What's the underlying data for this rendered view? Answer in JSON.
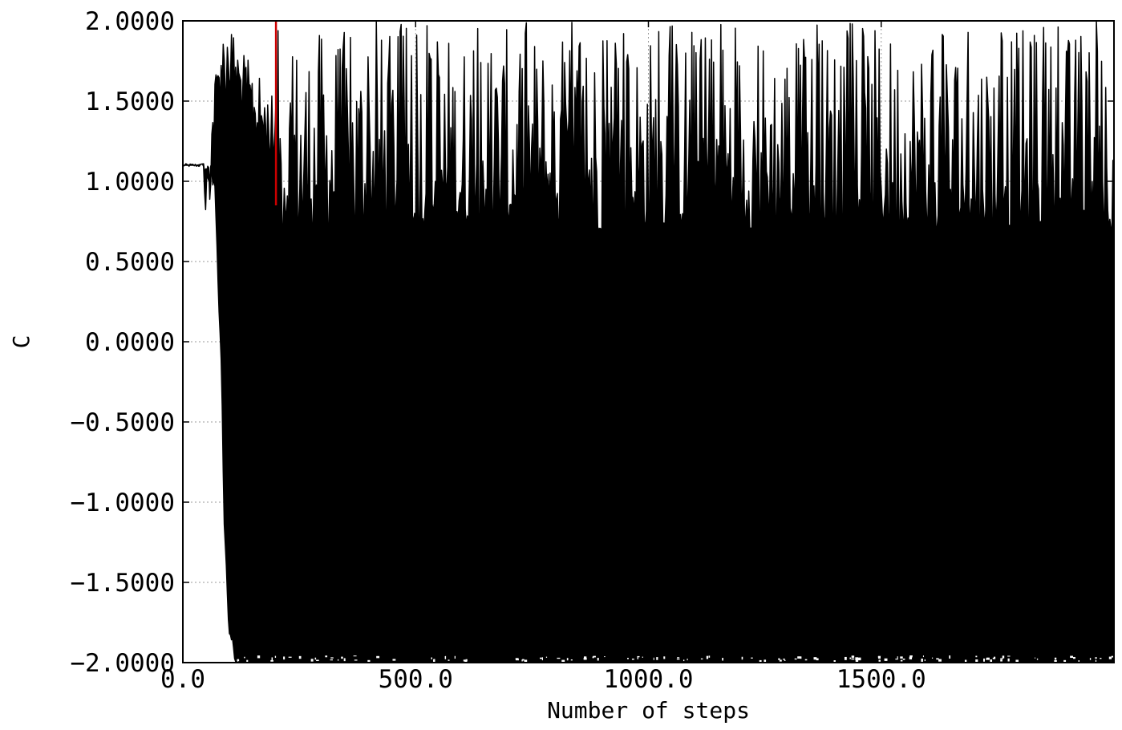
{
  "chart_data": {
    "type": "line",
    "title": "",
    "xlabel": "Number of steps",
    "ylabel": "C",
    "xlim": [
      0,
      2000
    ],
    "ylim": [
      -2.0,
      2.0
    ],
    "x_ticks": [
      0,
      500,
      1000,
      1500
    ],
    "x_tick_labels": [
      "0.0",
      "500.0",
      "1000.0",
      "1500.0"
    ],
    "y_ticks": [
      2.0,
      1.5,
      1.0,
      0.5,
      0.0,
      -0.5,
      -1.0,
      -1.5,
      -2.0
    ],
    "y_tick_labels": [
      "2.0000",
      "1.5000",
      "1.0000",
      "0.5000",
      "0.0000",
      "−0.5000",
      "−1.0000",
      "−1.5000",
      "−2.0000"
    ],
    "grid": true,
    "series": [
      {
        "color": "#000000",
        "description_points": [
          {
            "x": 0,
            "y": 1.1
          },
          {
            "x": 30,
            "y": 1.1
          },
          {
            "x": 60,
            "y": 1.12
          },
          {
            "x": 70,
            "y": 1.0
          },
          {
            "x": 75,
            "y": 0.5
          },
          {
            "x": 82,
            "y": 0.0
          },
          {
            "x": 90,
            "y": -1.2
          },
          {
            "x": 100,
            "y": -1.75
          },
          {
            "x": 110,
            "y": -1.85
          },
          {
            "x": 120,
            "y": -1.95
          },
          {
            "x": 150,
            "y": -2.0
          },
          {
            "x": 2000,
            "y": -2.0
          }
        ],
        "envelope_top": [
          {
            "x": 0,
            "y": 1.1
          },
          {
            "x": 40,
            "y": 1.1
          },
          {
            "x": 55,
            "y": 1.25
          },
          {
            "x": 65,
            "y": 1.6
          },
          {
            "x": 80,
            "y": 1.95
          },
          {
            "x": 100,
            "y": 2.0
          },
          {
            "x": 130,
            "y": 1.8
          },
          {
            "x": 200,
            "y": 1.5
          }
        ],
        "amplitude_range": [
          -2.0,
          2.0
        ]
      },
      {
        "color": "#cc0000",
        "x": [
          200,
          200
        ],
        "y": [
          0.85,
          2.0
        ]
      }
    ]
  }
}
